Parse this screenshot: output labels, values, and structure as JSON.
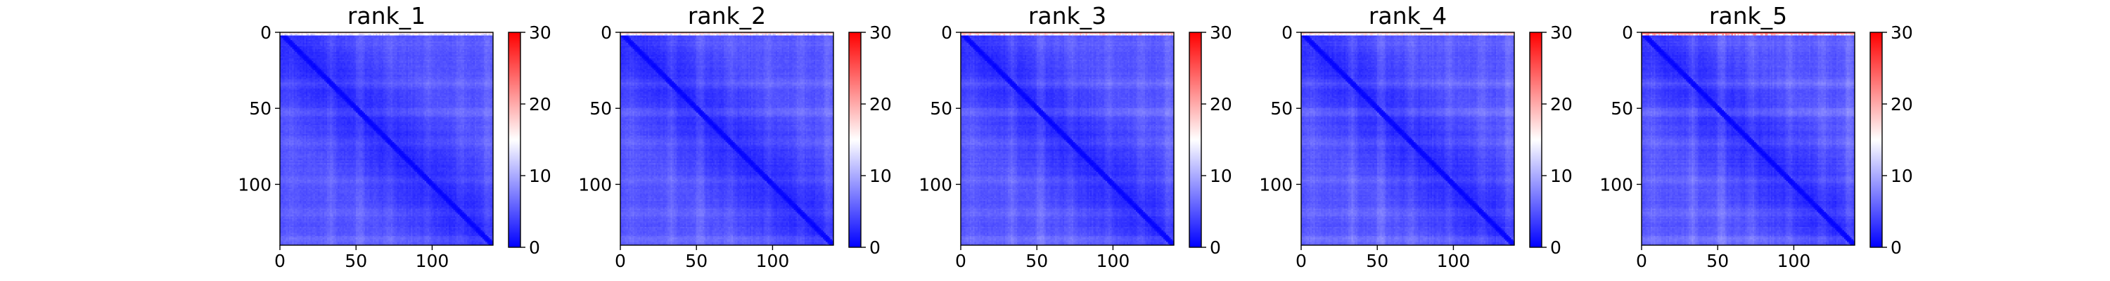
{
  "figure": {
    "colormap": "bwr",
    "colormap_colors": [
      "#0000ff",
      "#ffffff",
      "#ff0000"
    ],
    "background": "#ffffff"
  },
  "chart_data": [
    {
      "type": "heatmap",
      "title": "rank_1",
      "size": 140,
      "xlim": [
        0,
        140
      ],
      "ylim": [
        140,
        0
      ],
      "xticks": [
        0,
        50,
        100
      ],
      "yticks": [
        0,
        50,
        100
      ],
      "clim": [
        0,
        30
      ],
      "colorbar_ticks": [
        0,
        10,
        20,
        30
      ],
      "value_range_shown": [
        0,
        13
      ],
      "hot_top_edge": 18
    },
    {
      "type": "heatmap",
      "title": "rank_2",
      "size": 140,
      "xlim": [
        0,
        140
      ],
      "ylim": [
        140,
        0
      ],
      "xticks": [
        0,
        50,
        100
      ],
      "yticks": [
        0,
        50,
        100
      ],
      "clim": [
        0,
        30
      ],
      "colorbar_ticks": [
        0,
        10,
        20,
        30
      ],
      "value_range_shown": [
        0,
        13
      ],
      "hot_top_edge": 20
    },
    {
      "type": "heatmap",
      "title": "rank_3",
      "size": 140,
      "xlim": [
        0,
        140
      ],
      "ylim": [
        140,
        0
      ],
      "xticks": [
        0,
        50,
        100
      ],
      "yticks": [
        0,
        50,
        100
      ],
      "clim": [
        0,
        30
      ],
      "colorbar_ticks": [
        0,
        10,
        20,
        30
      ],
      "value_range_shown": [
        0,
        14
      ],
      "hot_top_edge": 22
    },
    {
      "type": "heatmap",
      "title": "rank_4",
      "size": 140,
      "xlim": [
        0,
        140
      ],
      "ylim": [
        140,
        0
      ],
      "xticks": [
        0,
        50,
        100
      ],
      "yticks": [
        0,
        50,
        100
      ],
      "clim": [
        0,
        30
      ],
      "colorbar_ticks": [
        0,
        10,
        20,
        30
      ],
      "value_range_shown": [
        0,
        14
      ],
      "hot_top_edge": 20
    },
    {
      "type": "heatmap",
      "title": "rank_5",
      "size": 140,
      "xlim": [
        0,
        140
      ],
      "ylim": [
        140,
        0
      ],
      "xticks": [
        0,
        50,
        100
      ],
      "yticks": [
        0,
        50,
        100
      ],
      "clim": [
        0,
        30
      ],
      "colorbar_ticks": [
        0,
        10,
        20,
        30
      ],
      "value_range_shown": [
        0,
        14
      ],
      "hot_top_edge": 26
    }
  ]
}
